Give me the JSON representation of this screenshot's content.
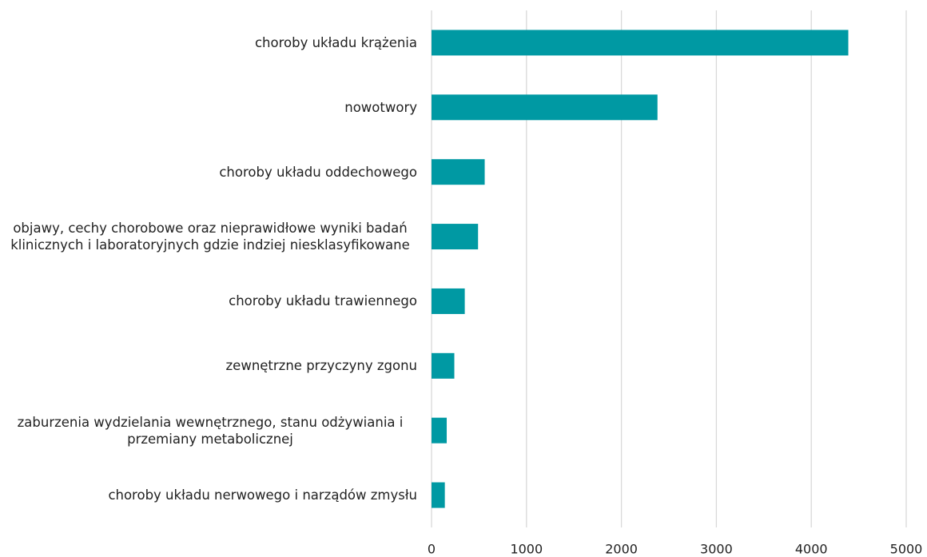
{
  "chart_data": {
    "type": "bar",
    "orientation": "horizontal",
    "categories": [
      "choroby układu krążenia",
      "nowotwory",
      "choroby układu oddechowego",
      "objawy, cechy chorobowe oraz nieprawidłowe wyniki badań klinicznych i laboratoryjnych gdzie indziej niesklasyfikowane",
      "choroby układu trawiennego",
      "zewnętrzne przyczyny zgonu",
      "zaburzenia wydzielania wewnętrznego, stanu odżywiania i przemiany metabolicznej",
      "choroby układu nerwowego i narządów zmysłu"
    ],
    "values": [
      4390,
      2380,
      560,
      490,
      350,
      240,
      160,
      140
    ],
    "color": "#0099a3",
    "xlim": [
      0,
      5000
    ],
    "xticks": [
      0,
      1000,
      2000,
      3000,
      4000,
      5000
    ],
    "grid": true
  }
}
